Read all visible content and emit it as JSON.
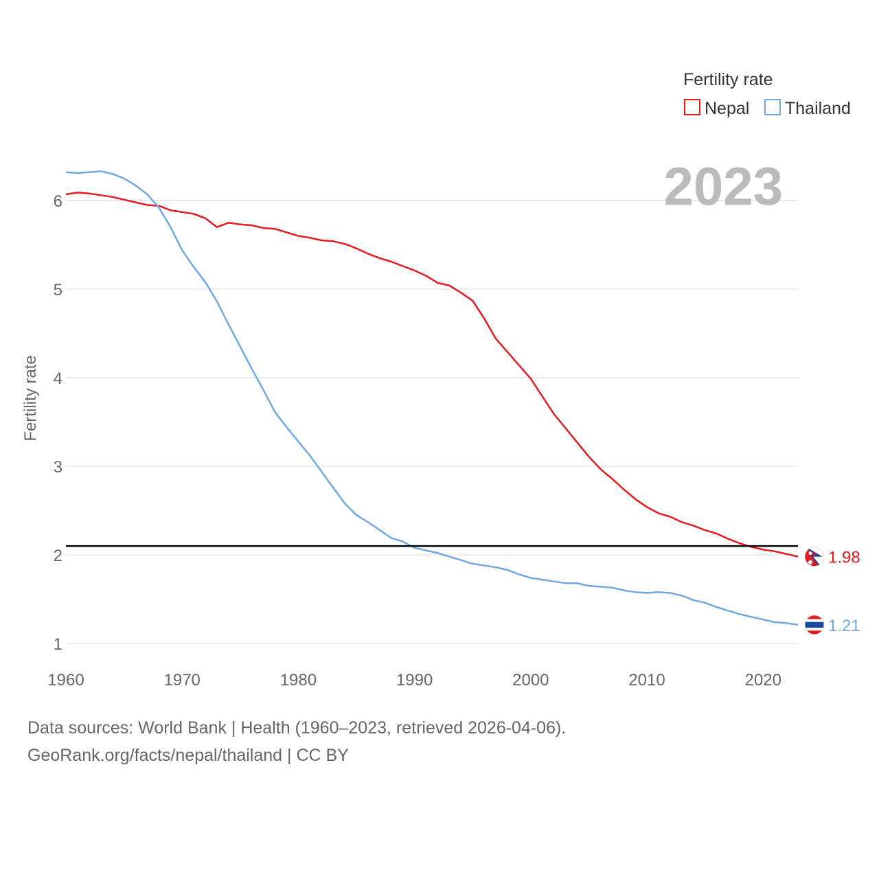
{
  "chart_data": {
    "type": "line",
    "year_label": "2023",
    "ylabel": "Fertility rate",
    "xlabel": "",
    "xlim": [
      1960,
      2023
    ],
    "ylim": [
      0.9,
      6.5
    ],
    "x_ticks": [
      "1960",
      "1970",
      "1980",
      "1990",
      "2000",
      "2010",
      "2020"
    ],
    "y_ticks": [
      "1",
      "2",
      "3",
      "4",
      "5",
      "6"
    ],
    "legend": {
      "title": "Fertility rate",
      "position": "top-right"
    },
    "reference_line": {
      "value": 2.1
    },
    "x": [
      1960,
      1961,
      1962,
      1963,
      1964,
      1965,
      1966,
      1967,
      1968,
      1969,
      1970,
      1971,
      1972,
      1973,
      1974,
      1975,
      1976,
      1977,
      1978,
      1979,
      1980,
      1981,
      1982,
      1983,
      1984,
      1985,
      1986,
      1987,
      1988,
      1989,
      1990,
      1991,
      1992,
      1993,
      1994,
      1995,
      1996,
      1997,
      1998,
      1999,
      2000,
      2001,
      2002,
      2003,
      2004,
      2005,
      2006,
      2007,
      2008,
      2009,
      2010,
      2011,
      2012,
      2013,
      2014,
      2015,
      2016,
      2017,
      2018,
      2019,
      2020,
      2021,
      2022,
      2023
    ],
    "series": [
      {
        "name": "Nepal",
        "color": "#e41a1c",
        "end_label": "1.98",
        "values": [
          6.07,
          6.09,
          6.08,
          6.06,
          6.04,
          6.01,
          5.98,
          5.95,
          5.94,
          5.89,
          5.87,
          5.85,
          5.8,
          5.7,
          5.75,
          5.73,
          5.72,
          5.69,
          5.68,
          5.64,
          5.6,
          5.58,
          5.55,
          5.54,
          5.51,
          5.46,
          5.4,
          5.35,
          5.31,
          5.26,
          5.21,
          5.15,
          5.07,
          5.04,
          4.96,
          4.87,
          4.67,
          4.44,
          4.29,
          4.14,
          3.99,
          3.79,
          3.59,
          3.43,
          3.27,
          3.11,
          2.97,
          2.86,
          2.74,
          2.63,
          2.54,
          2.47,
          2.43,
          2.37,
          2.33,
          2.28,
          2.24,
          2.18,
          2.13,
          2.09,
          2.06,
          2.04,
          2.01,
          1.98
        ]
      },
      {
        "name": "Thailand",
        "color": "#6fa8e4",
        "end_label": "1.21",
        "values": [
          6.32,
          6.31,
          6.32,
          6.33,
          6.3,
          6.25,
          6.17,
          6.07,
          5.92,
          5.7,
          5.44,
          5.25,
          5.08,
          4.86,
          4.6,
          4.35,
          4.1,
          3.86,
          3.61,
          3.44,
          3.28,
          3.12,
          2.94,
          2.76,
          2.58,
          2.45,
          2.37,
          2.28,
          2.19,
          2.15,
          2.08,
          2.05,
          2.02,
          1.98,
          1.94,
          1.9,
          1.88,
          1.86,
          1.83,
          1.78,
          1.74,
          1.72,
          1.7,
          1.68,
          1.68,
          1.65,
          1.64,
          1.63,
          1.6,
          1.58,
          1.57,
          1.58,
          1.57,
          1.54,
          1.49,
          1.46,
          1.41,
          1.37,
          1.33,
          1.3,
          1.27,
          1.24,
          1.23,
          1.21
        ]
      }
    ]
  },
  "colors": {
    "grid": "#e6e6e6",
    "axis_text": "#666666",
    "legend_text": "#333333",
    "year_watermark": "#bbbbbb",
    "reference_line": "#000000",
    "nepal_flag_red": "#e41a1c",
    "nepal_flag_blue": "#1a3a8c",
    "thailand_flag_red": "#e41a1c",
    "thailand_flag_blue": "#1a4a9c"
  },
  "footer": {
    "line1": "Data sources: World Bank | Health (1960–2023, retrieved 2026-04-06).",
    "line2": "GeoRank.org/facts/nepal/thailand | CC BY"
  }
}
